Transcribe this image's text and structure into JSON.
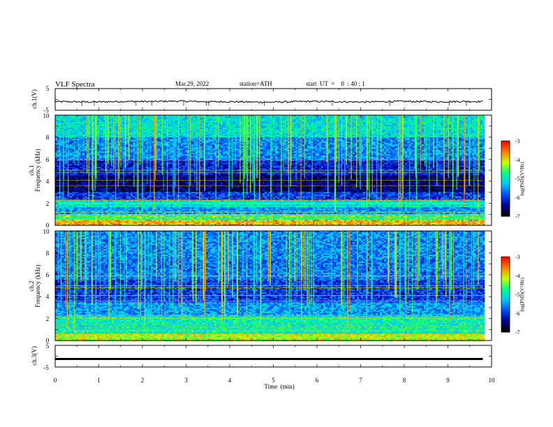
{
  "header": {
    "title": "VLF  Spectra",
    "date": "Mar.29, 2022",
    "station": "station=ATH",
    "start_ut": "start  UT  =    0  : 40 : 1"
  },
  "chart_data": [
    {
      "type": "line",
      "panel": "ch1-waveform",
      "ylabel": "ch.1(V)",
      "ylim": [
        -5,
        5
      ],
      "yticks": [
        "5",
        "-5"
      ],
      "xlim": [
        0,
        10
      ],
      "data_end_min": 9.8,
      "baseline_v": -0.9,
      "series": [
        {
          "values": [
            -1.0,
            -1.1,
            -1.2,
            -1.0,
            -0.9,
            -1.0,
            -0.8,
            -0.9,
            -1.1,
            -1.0,
            -1.2,
            -1.3,
            -1.1,
            -0.9,
            -1.0,
            -1.1,
            -1.2,
            -1.0,
            -0.9,
            -1.0,
            -1.1,
            -0.9,
            -1.0
          ]
        }
      ]
    },
    {
      "type": "heatmap",
      "panel": "ch1-spectrogram",
      "ylabel_lines": [
        "ch.1",
        "Frequency (kHz)"
      ],
      "ylim": [
        0,
        10
      ],
      "yticks": [
        "0",
        "2",
        "4",
        "6",
        "8",
        "10"
      ],
      "xlim": [
        0,
        10
      ],
      "data_end_min": 9.8,
      "colorbar_label": "log(PSD)(V²/Hz)",
      "color_range": [
        -7,
        -3
      ],
      "colorbar_ticks": [
        "-3",
        "-4",
        "-5",
        "-6",
        "-7"
      ],
      "band_profile_log_psd": [
        {
          "f_khz": [
            0.0,
            0.5
          ],
          "level": -3.8
        },
        {
          "f_khz": [
            0.5,
            1.0
          ],
          "level": -4.6
        },
        {
          "f_khz": [
            1.0,
            1.7
          ],
          "level": -5.5
        },
        {
          "f_khz": [
            1.7,
            2.3
          ],
          "level": -5.0
        },
        {
          "f_khz": [
            2.3,
            3.0
          ],
          "level": -6.0
        },
        {
          "f_khz": [
            3.0,
            4.5
          ],
          "level": -6.6
        },
        {
          "f_khz": [
            4.5,
            6.0
          ],
          "level": -6.2
        },
        {
          "f_khz": [
            6.0,
            8.0
          ],
          "level": -5.6
        },
        {
          "f_khz": [
            8.0,
            10.0
          ],
          "level": -5.1
        }
      ]
    },
    {
      "type": "heatmap",
      "panel": "ch2-spectrogram",
      "ylabel_lines": [
        "ch.2",
        "Frequency (kHz)"
      ],
      "ylim": [
        0,
        10
      ],
      "yticks": [
        "0",
        "2",
        "4",
        "6",
        "8",
        "10"
      ],
      "xlim": [
        0,
        10
      ],
      "data_end_min": 9.8,
      "colorbar_label": "log(PSD)(V²/Hz)",
      "color_range": [
        -7,
        -3
      ],
      "colorbar_ticks": [
        "-3",
        "-4",
        "-5",
        "-6",
        "-7"
      ],
      "band_profile_log_psd": [
        {
          "f_khz": [
            0.0,
            0.6
          ],
          "level": -4.2
        },
        {
          "f_khz": [
            0.6,
            2.2
          ],
          "level": -4.9
        },
        {
          "f_khz": [
            2.2,
            3.5
          ],
          "level": -5.5
        },
        {
          "f_khz": [
            3.5,
            5.5
          ],
          "level": -6.0
        },
        {
          "f_khz": [
            5.5,
            7.5
          ],
          "level": -5.7
        },
        {
          "f_khz": [
            7.5,
            10.0
          ],
          "level": -5.6
        }
      ]
    },
    {
      "type": "line",
      "panel": "ch3-waveform",
      "ylabel": "ch.3(V)",
      "ylim": [
        -5,
        5
      ],
      "yticks": [
        "5",
        "-5"
      ],
      "xlim": [
        0,
        10
      ],
      "data_end_min": 9.8,
      "series": [
        {
          "values": [
            -1.3,
            -1.3
          ]
        }
      ]
    }
  ],
  "xaxis": {
    "label": "Time  (min)",
    "ticks": [
      "0",
      "1",
      "2",
      "3",
      "4",
      "5",
      "6",
      "7",
      "8",
      "9",
      "10"
    ]
  },
  "colors": {
    "background": "#ffffff",
    "axes": "#000000",
    "colormap": [
      "#000000",
      "#0000a0",
      "#0050ff",
      "#00c8ff",
      "#00ff80",
      "#c8ff00",
      "#ff8000",
      "#ff0000",
      "#ffffff"
    ]
  }
}
